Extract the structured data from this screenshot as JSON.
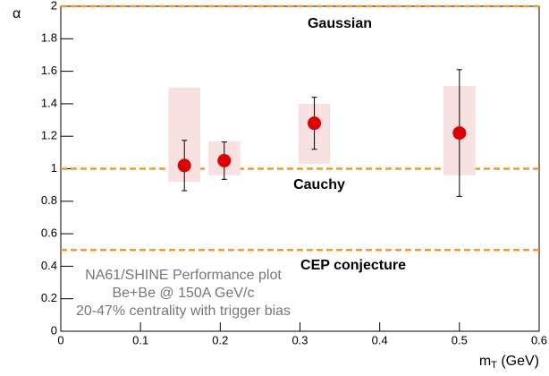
{
  "chart_data": {
    "type": "scatter",
    "ylabel": "α",
    "xlabel": {
      "main": "m",
      "sub": "T",
      "rest": " (GeV)"
    },
    "xlim": [
      0,
      0.6
    ],
    "xticks": [
      0,
      0.1,
      0.2,
      0.3,
      0.4,
      0.5,
      0.6
    ],
    "ylim": [
      0,
      2
    ],
    "yticks": [
      0,
      0.2,
      0.4,
      0.6,
      0.8,
      1,
      1.2,
      1.4,
      1.6,
      1.8,
      2
    ],
    "series": [
      {
        "color": "#dd0000",
        "box_color": "#f7e1e1",
        "x": [
          0.155,
          0.205,
          0.318,
          0.5
        ],
        "y": [
          1.02,
          1.05,
          1.28,
          1.22
        ],
        "errors": [
          0.155,
          0.115,
          0.16,
          0.39
        ],
        "sys_lo": [
          0.92,
          0.96,
          1.03,
          0.96
        ],
        "sys_hi": [
          1.5,
          1.17,
          1.4,
          1.51
        ],
        "box_width": 0.04
      }
    ],
    "references": [
      {
        "value": 2,
        "label": "Gaussian"
      },
      {
        "value": 1,
        "label": "Cauchy"
      },
      {
        "value": 0.5,
        "label": "CEP conjecture"
      }
    ],
    "reference_color": "#ee9933",
    "annotations": [
      "NA61/SHINE Performance plot",
      "Be+Be @ 150A GeV/c",
      "20-47% centrality with trigger bias"
    ]
  }
}
